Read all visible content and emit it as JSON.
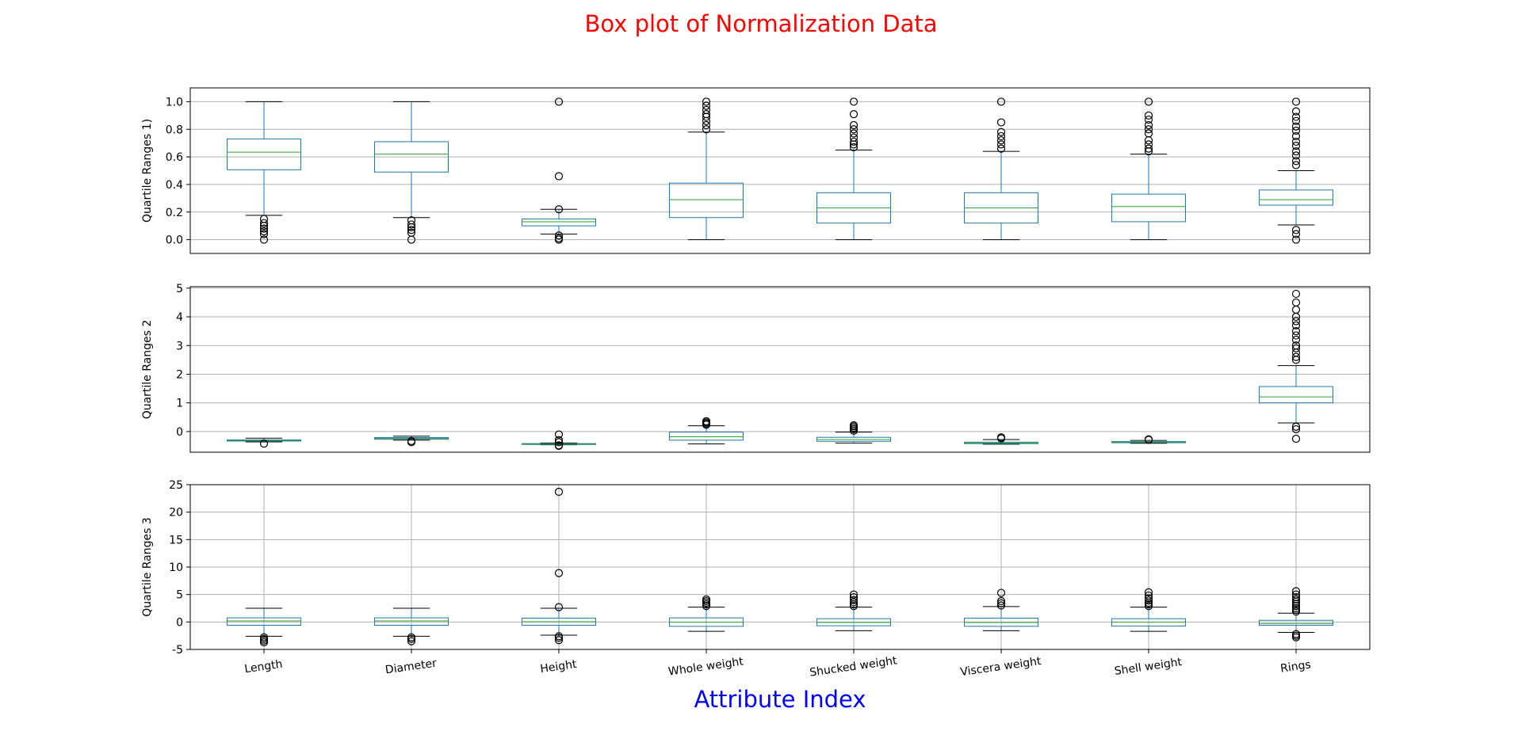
{
  "title": "Box plot of Normalization Data",
  "xlabel": "Attribute Index",
  "chart_data": [
    {
      "type": "box",
      "ylabel": "Quartile Ranges 1)",
      "ylim": [
        -0.1,
        1.1
      ],
      "yticks": [
        {
          "value": 0,
          "label": "0.0"
        },
        0.2,
        0.4,
        0.6,
        0.8,
        {
          "value": 1,
          "label": "1.0"
        }
      ],
      "grid": true,
      "xgrid": false,
      "box_color": "#1f77b4",
      "median_color": "#2ca02c",
      "cap_color": "#000000",
      "boxes": [
        {
          "low": 0.176,
          "q1": 0.507,
          "median": 0.634,
          "q3": 0.73,
          "high": 1.0,
          "outliers": [
            0.15,
            0.12,
            0.1,
            0.08,
            0.06,
            0.04,
            0.0
          ]
        },
        {
          "low": 0.16,
          "q1": 0.49,
          "median": 0.62,
          "q3": 0.71,
          "high": 1.0,
          "outliers": [
            0.14,
            0.11,
            0.09,
            0.07,
            0.05,
            0.0
          ]
        },
        {
          "low": 0.04,
          "q1": 0.1,
          "median": 0.13,
          "q3": 0.15,
          "high": 0.22,
          "outliers": [
            1.0,
            0.46,
            0.22,
            0.03,
            0.01,
            0.0
          ]
        },
        {
          "low": 0.0,
          "q1": 0.16,
          "median": 0.29,
          "q3": 0.41,
          "high": 0.78,
          "outliers": [
            0.8,
            0.83,
            0.86,
            0.89,
            0.91,
            0.94,
            0.97,
            1.0
          ]
        },
        {
          "low": 0.0,
          "q1": 0.12,
          "median": 0.23,
          "q3": 0.34,
          "high": 0.65,
          "outliers": [
            0.67,
            0.69,
            0.71,
            0.74,
            0.77,
            0.8,
            0.83,
            0.91,
            1.0
          ]
        },
        {
          "low": 0.0,
          "q1": 0.12,
          "median": 0.23,
          "q3": 0.34,
          "high": 0.64,
          "outliers": [
            0.66,
            0.69,
            0.72,
            0.75,
            0.78,
            0.85,
            1.0
          ]
        },
        {
          "low": 0.0,
          "q1": 0.13,
          "median": 0.24,
          "q3": 0.33,
          "high": 0.62,
          "outliers": [
            0.64,
            0.66,
            0.69,
            0.72,
            0.77,
            0.8,
            0.83,
            0.87,
            0.9,
            1.0
          ]
        },
        {
          "low": 0.107,
          "q1": 0.25,
          "median": 0.29,
          "q3": 0.36,
          "high": 0.5,
          "outliers": [
            0.54,
            0.57,
            0.61,
            0.64,
            0.68,
            0.71,
            0.75,
            0.79,
            0.82,
            0.86,
            0.89,
            0.93,
            1.0,
            0.07,
            0.04,
            0.0
          ]
        }
      ]
    },
    {
      "type": "box",
      "ylabel": "Quartile Ranges 2",
      "ylim": [
        -0.72,
        5.05
      ],
      "yticks": [
        0,
        1,
        2,
        3,
        4,
        5
      ],
      "grid": true,
      "xgrid": false,
      "box_color": "#1f77b4",
      "median_color": "#2ca02c",
      "cap_color": "#000000",
      "boxes": [
        {
          "low": -0.36,
          "q1": -0.33,
          "median": -0.31,
          "q3": -0.29,
          "high": -0.23,
          "outliers": [
            -0.42
          ]
        },
        {
          "low": -0.3,
          "q1": -0.27,
          "median": -0.24,
          "q3": -0.21,
          "high": -0.16,
          "outliers": [
            -0.33,
            -0.37
          ]
        },
        {
          "low": -0.46,
          "q1": -0.45,
          "median": -0.44,
          "q3": -0.42,
          "high": -0.4,
          "outliers": [
            -0.1,
            -0.3,
            -0.37,
            -0.48,
            -0.5
          ]
        },
        {
          "low": -0.43,
          "q1": -0.3,
          "median": -0.18,
          "q3": -0.02,
          "high": 0.2,
          "outliers": [
            0.24,
            0.28,
            0.32,
            0.36
          ]
        },
        {
          "low": -0.4,
          "q1": -0.34,
          "median": -0.28,
          "q3": -0.2,
          "high": -0.02,
          "outliers": [
            0.03,
            0.08,
            0.13,
            0.18,
            0.22
          ]
        },
        {
          "low": -0.44,
          "q1": -0.42,
          "median": -0.4,
          "q3": -0.37,
          "high": -0.28,
          "outliers": [
            -0.24,
            -0.2
          ]
        },
        {
          "low": -0.41,
          "q1": -0.39,
          "median": -0.37,
          "q3": -0.35,
          "high": -0.31,
          "outliers": [
            -0.29,
            -0.27
          ]
        },
        {
          "low": 0.3,
          "q1": 1.0,
          "median": 1.21,
          "q3": 1.57,
          "high": 2.3,
          "outliers": [
            2.5,
            2.6,
            2.75,
            2.9,
            3.0,
            3.2,
            3.35,
            3.5,
            3.7,
            3.85,
            4.0,
            4.25,
            4.5,
            4.8,
            0.17,
            0.08,
            -0.25
          ]
        }
      ]
    },
    {
      "type": "box",
      "ylabel": "Quartile Ranges 3",
      "ylim": [
        -5,
        25
      ],
      "yticks": [
        -5,
        0,
        5,
        10,
        15,
        20,
        25
      ],
      "grid": true,
      "xgrid": true,
      "box_color": "#1f77b4",
      "median_color": "#2ca02c",
      "cap_color": "#000000",
      "categories": [
        "Length",
        "Diameter",
        "Height",
        "Whole weight",
        "Shucked weight",
        "Viscera weight",
        "Shell weight",
        "Rings"
      ],
      "boxes": [
        {
          "low": -2.6,
          "q1": -0.6,
          "median": 0.2,
          "q3": 0.75,
          "high": 2.5,
          "outliers": [
            -2.8,
            -3.1,
            -3.4,
            -3.7
          ]
        },
        {
          "low": -2.6,
          "q1": -0.6,
          "median": 0.2,
          "q3": 0.75,
          "high": 2.5,
          "outliers": [
            -2.8,
            -3.1,
            -3.5
          ]
        },
        {
          "low": -2.4,
          "q1": -0.6,
          "median": 0.05,
          "q3": 0.7,
          "high": 2.5,
          "outliers": [
            23.7,
            8.9,
            2.7,
            -2.6,
            -2.9,
            -3.3
          ]
        },
        {
          "low": -1.7,
          "q1": -0.8,
          "median": -0.05,
          "q3": 0.75,
          "high": 2.7,
          "outliers": [
            2.9,
            3.2,
            3.5,
            3.8,
            4.1
          ]
        },
        {
          "low": -1.6,
          "q1": -0.7,
          "median": -0.1,
          "q3": 0.6,
          "high": 2.7,
          "outliers": [
            2.9,
            3.2,
            3.6,
            4.0,
            4.5,
            5.0
          ]
        },
        {
          "low": -1.6,
          "q1": -0.8,
          "median": -0.1,
          "q3": 0.7,
          "high": 2.8,
          "outliers": [
            3.0,
            3.4,
            3.8,
            5.3
          ]
        },
        {
          "low": -1.7,
          "q1": -0.75,
          "median": -0.05,
          "q3": 0.6,
          "high": 2.7,
          "outliers": [
            2.9,
            3.2,
            3.5,
            3.9,
            4.3,
            4.8,
            5.4
          ]
        },
        {
          "low": -1.9,
          "q1": -0.6,
          "median": -0.3,
          "q3": 0.3,
          "high": 1.6,
          "outliers": [
            1.9,
            2.2,
            2.5,
            2.9,
            3.3,
            3.7,
            4.1,
            4.5,
            5.0,
            5.6,
            -2.2,
            -2.5,
            -2.8
          ]
        }
      ]
    }
  ]
}
